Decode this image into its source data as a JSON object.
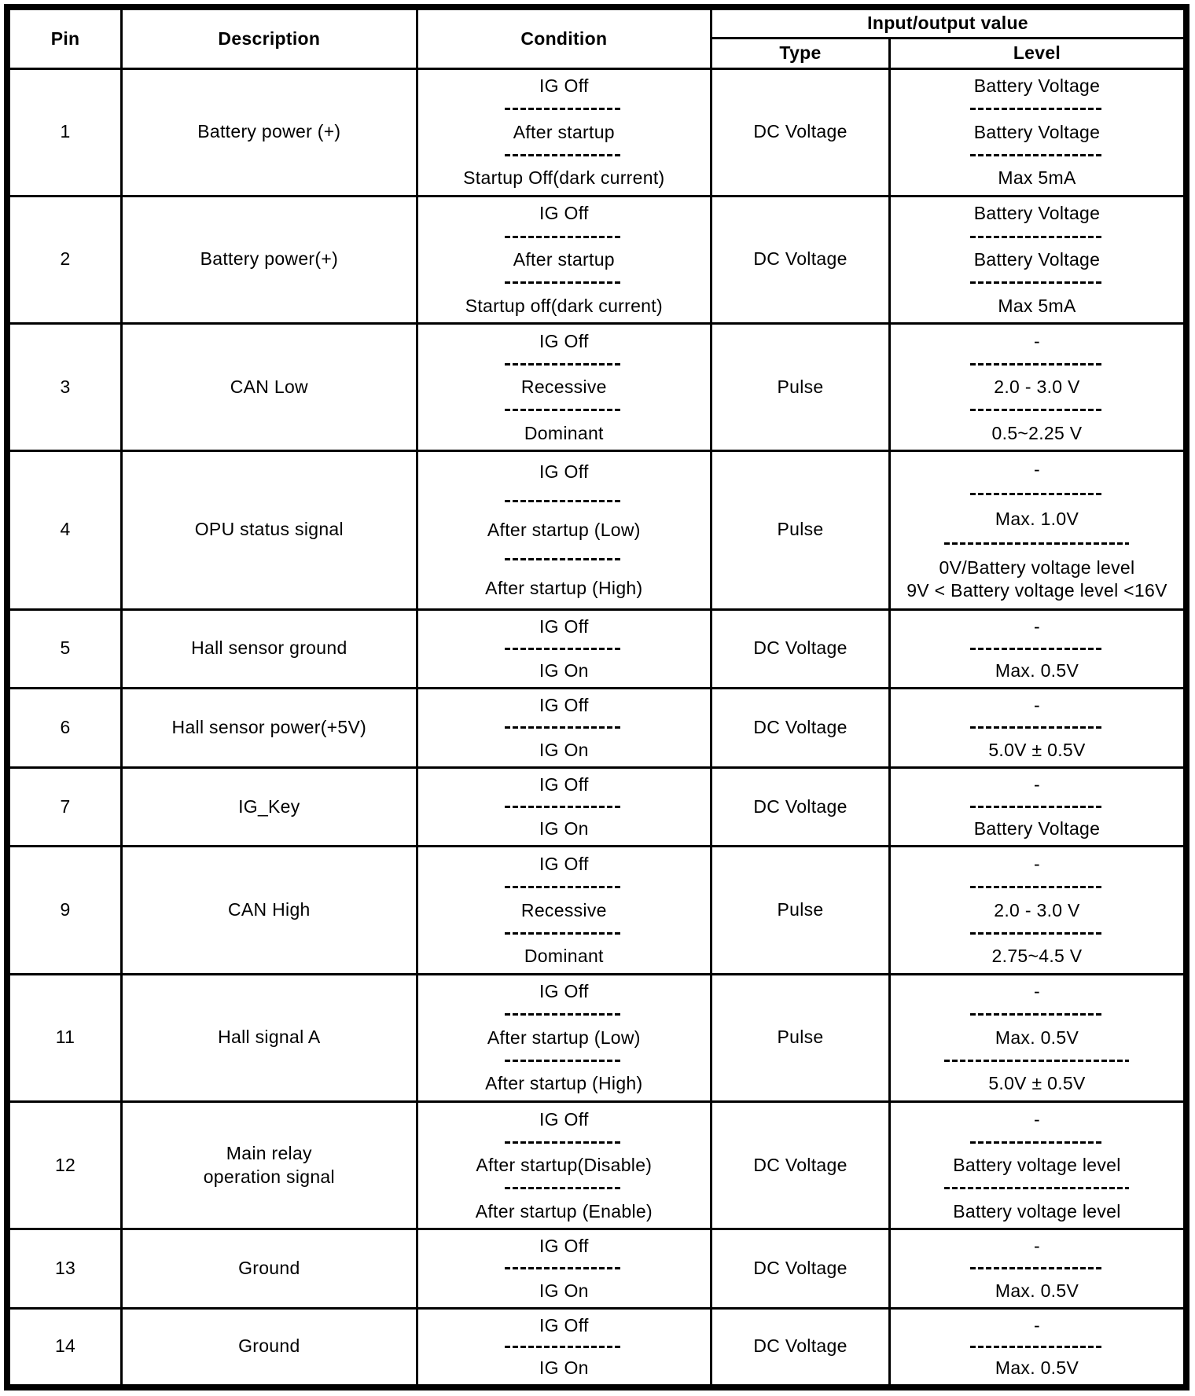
{
  "page": {
    "background": "#ffffff",
    "line_color": "#000000"
  },
  "table": {
    "headers": {
      "pin": "Pin",
      "description": "Description",
      "condition": "Condition",
      "io_group": "Input/output value",
      "type": "Type",
      "level": "Level"
    },
    "rows": [
      {
        "pin": "1",
        "description": "Battery power (+)",
        "type": "DC Voltage",
        "conditions": [
          "IG Off",
          "After startup",
          "Startup Off(dark current)"
        ],
        "levels": [
          "Battery Voltage",
          "Battery Voltage",
          "Max 5mA"
        ],
        "level_seps": [
          "normal",
          "normal"
        ]
      },
      {
        "pin": "2",
        "description": "Battery power(+)",
        "type": "DC Voltage",
        "conditions": [
          "IG Off",
          "After startup",
          "Startup off(dark current)"
        ],
        "levels": [
          "Battery Voltage",
          "Battery Voltage",
          "Max 5mA"
        ],
        "level_seps": [
          "normal",
          "normal"
        ]
      },
      {
        "pin": "3",
        "description": "CAN Low",
        "type": "Pulse",
        "conditions": [
          "IG Off",
          "Recessive",
          "Dominant"
        ],
        "levels": [
          "-",
          "2.0 - 3.0 V",
          "0.5~2.25 V"
        ],
        "level_seps": [
          "normal",
          "normal"
        ]
      },
      {
        "pin": "4",
        "description": "OPU status signal",
        "type": "Pulse",
        "conditions": [
          "IG Off",
          "After startup (Low)",
          "After startup (High)"
        ],
        "levels": [
          "-",
          "Max. 1.0V",
          "0V/Battery voltage level\n9V < Battery voltage level <16V"
        ],
        "level_seps": [
          "normal",
          "wide"
        ]
      },
      {
        "pin": "5",
        "description": "Hall sensor ground",
        "type": "DC Voltage",
        "conditions": [
          "IG Off",
          "IG On"
        ],
        "levels": [
          "-",
          "Max. 0.5V"
        ],
        "level_seps": [
          "normal"
        ]
      },
      {
        "pin": "6",
        "description": "Hall sensor power(+5V)",
        "type": "DC Voltage",
        "conditions": [
          "IG Off",
          "IG On"
        ],
        "levels": [
          "-",
          "5.0V ± 0.5V"
        ],
        "level_seps": [
          "normal"
        ]
      },
      {
        "pin": "7",
        "description": "IG_Key",
        "type": "DC Voltage",
        "conditions": [
          "IG Off",
          "IG On"
        ],
        "levels": [
          "-",
          "Battery Voltage"
        ],
        "level_seps": [
          "normal"
        ]
      },
      {
        "pin": "9",
        "description": "CAN High",
        "type": "Pulse",
        "conditions": [
          "IG Off",
          "Recessive",
          "Dominant"
        ],
        "levels": [
          "-",
          "2.0 - 3.0 V",
          "2.75~4.5 V"
        ],
        "level_seps": [
          "normal",
          "normal"
        ]
      },
      {
        "pin": "11",
        "description": "Hall signal A",
        "type": "Pulse",
        "conditions": [
          "IG Off",
          "After startup (Low)",
          "After startup (High)"
        ],
        "levels": [
          "-",
          "Max. 0.5V",
          "5.0V ± 0.5V"
        ],
        "level_seps": [
          "normal",
          "wide"
        ]
      },
      {
        "pin": "12",
        "description": "Main relay\noperation signal",
        "type": "DC Voltage",
        "conditions": [
          "IG Off",
          "After startup(Disable)",
          "After startup (Enable)"
        ],
        "levels": [
          "-",
          "Battery voltage level",
          "Battery voltage level"
        ],
        "level_seps": [
          "normal",
          "wide"
        ]
      },
      {
        "pin": "13",
        "description": "Ground",
        "type": "DC Voltage",
        "conditions": [
          "IG Off",
          "IG On"
        ],
        "levels": [
          "-",
          "Max. 0.5V"
        ],
        "level_seps": [
          "normal"
        ]
      },
      {
        "pin": "14",
        "description": "Ground",
        "type": "DC Voltage",
        "conditions": [
          "IG Off",
          "IG On"
        ],
        "levels": [
          "-",
          "Max. 0.5V"
        ],
        "level_seps": [
          "normal"
        ]
      }
    ]
  }
}
